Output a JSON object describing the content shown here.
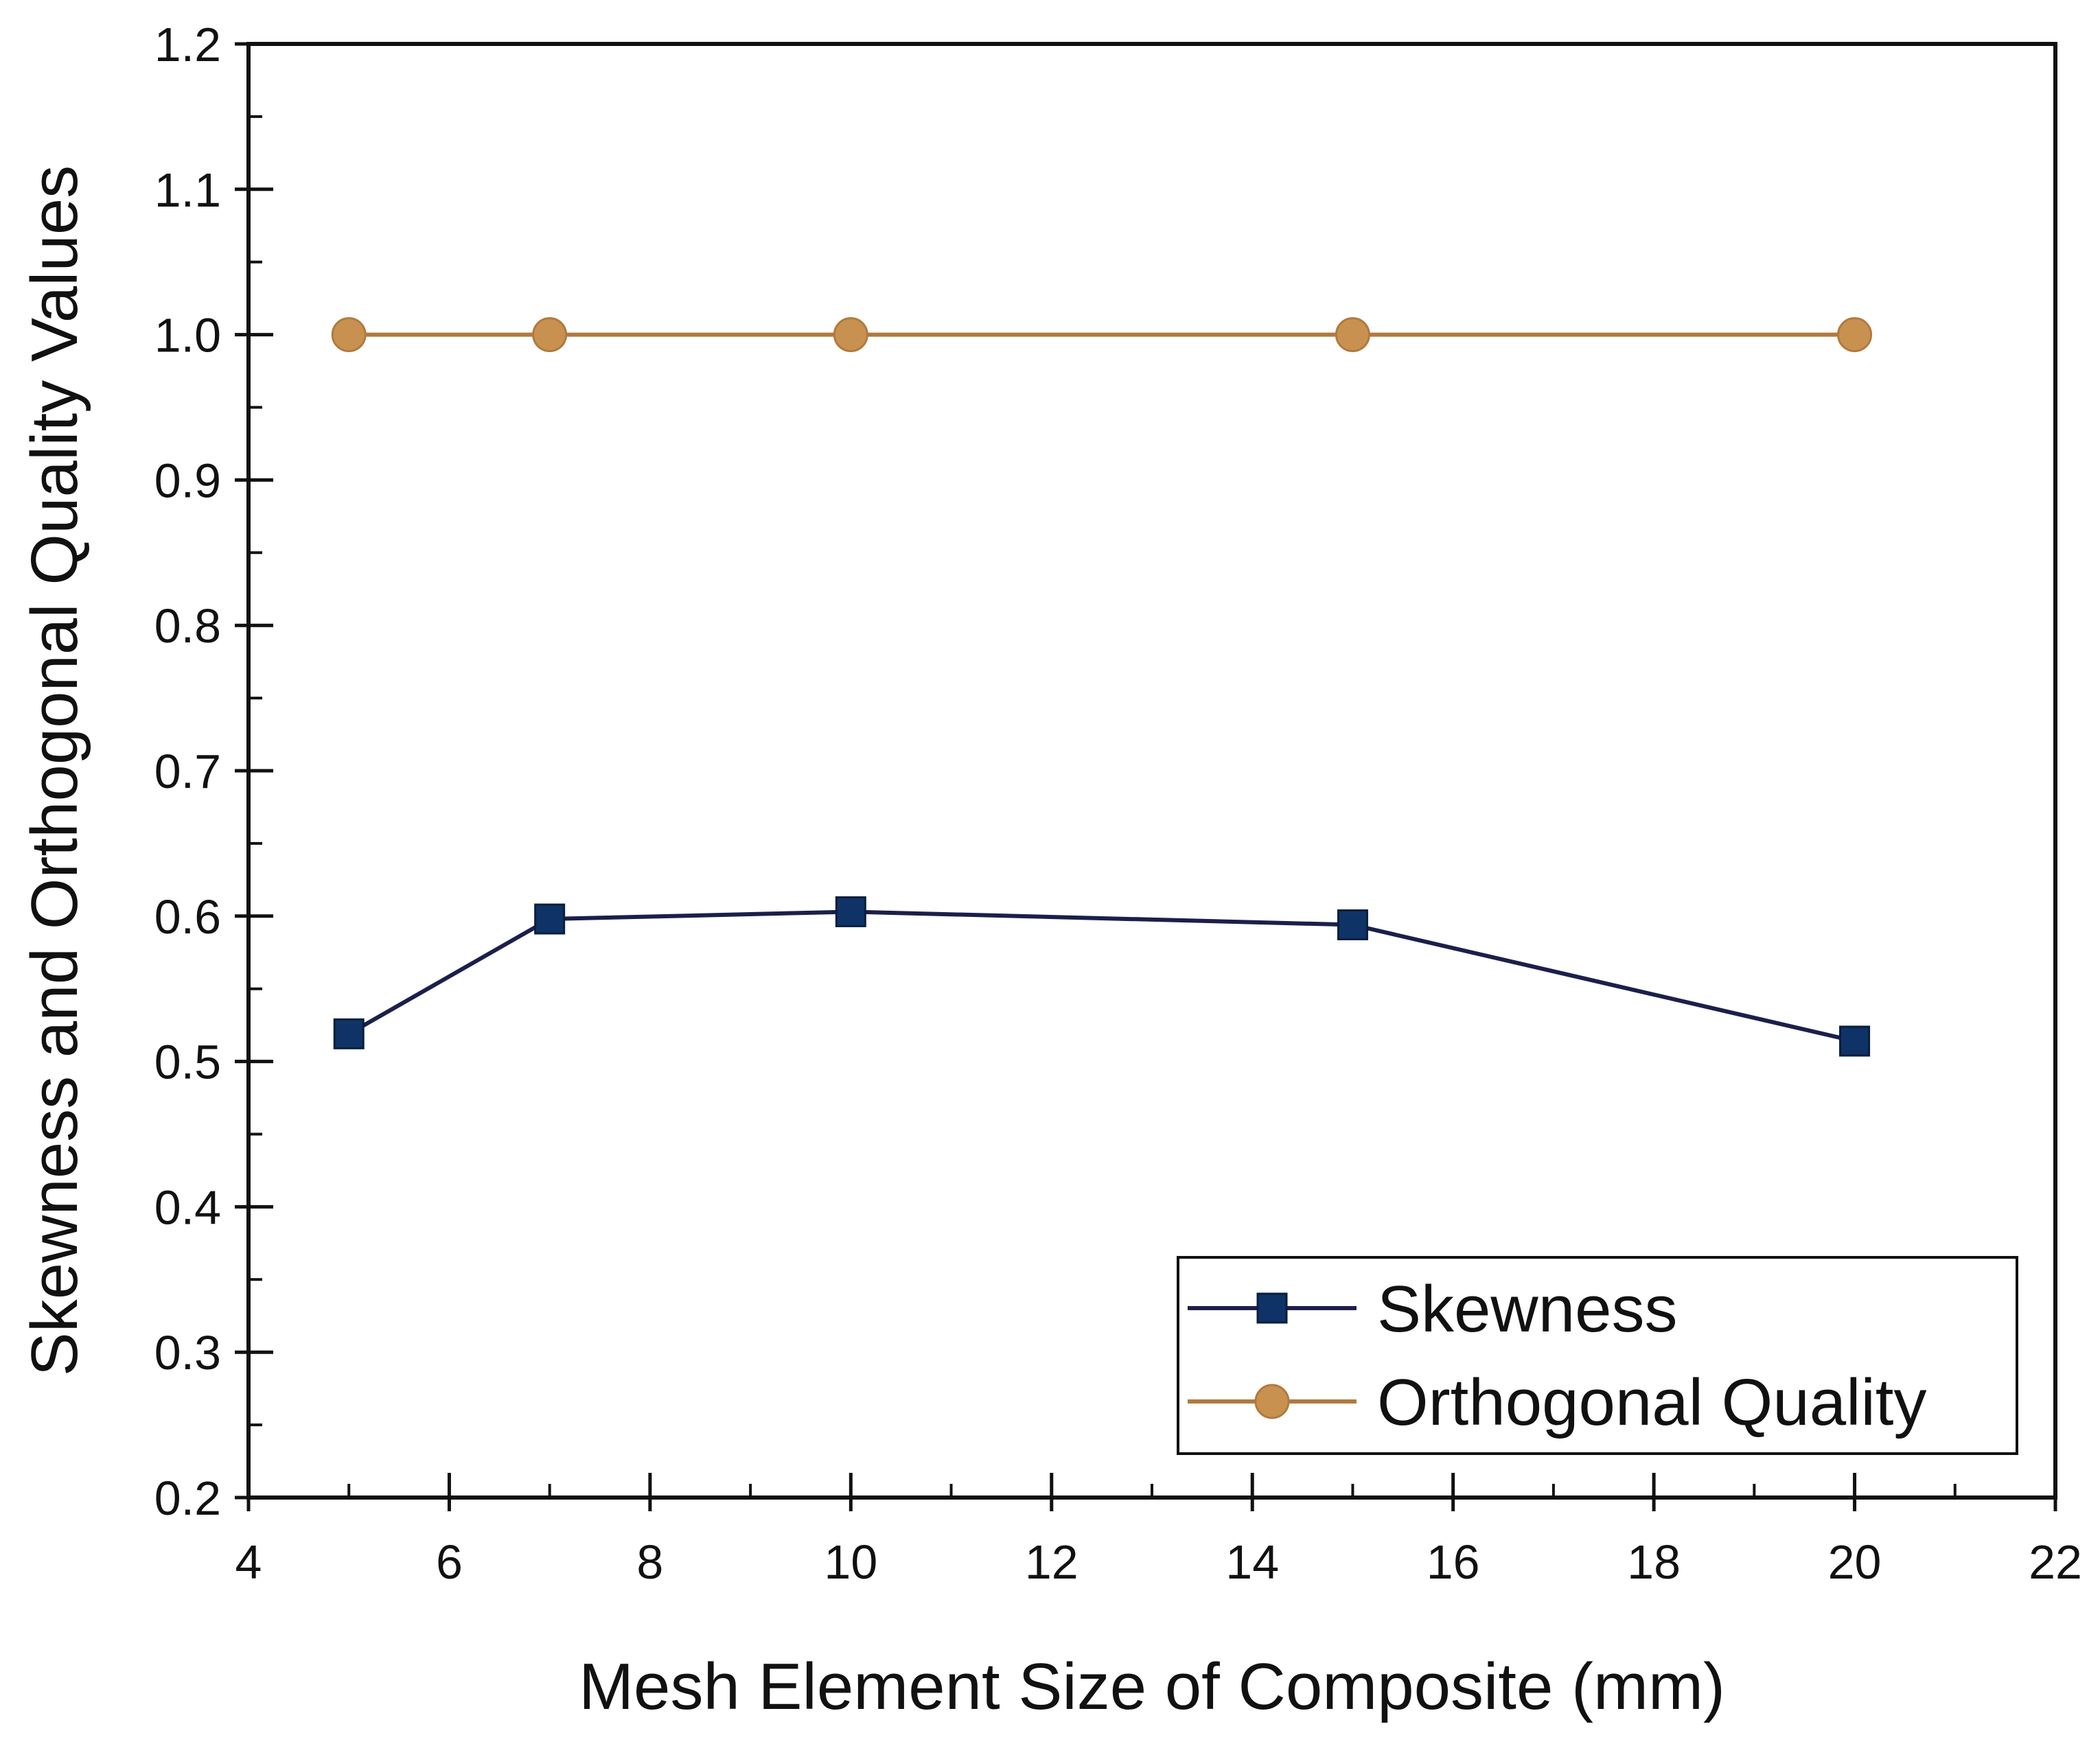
{
  "chart_data": {
    "type": "line",
    "title": "",
    "xlabel": "Mesh Element Size of Composite (mm)",
    "ylabel": "Skewness and Orthogonal Quality Values",
    "xlim": [
      4,
      22
    ],
    "ylim": [
      0.2,
      1.2
    ],
    "xticks": [
      4,
      6,
      8,
      10,
      12,
      14,
      16,
      18,
      20,
      22
    ],
    "xtick_labels": [
      "4",
      "6",
      "8",
      "10",
      "12",
      "14",
      "16",
      "18",
      "20",
      "22"
    ],
    "yticks": [
      0.2,
      0.3,
      0.4,
      0.5,
      0.6,
      0.7,
      0.8,
      0.9,
      1.0,
      1.1,
      1.2
    ],
    "ytick_labels": [
      "0.2",
      "0.3",
      "0.4",
      "0.5",
      "0.6",
      "0.7",
      "0.8",
      "0.9",
      "1.0",
      "1.1",
      "1.2"
    ],
    "grid": false,
    "legend_position": "bottom-right",
    "x": [
      5,
      7,
      10,
      15,
      20
    ],
    "series": [
      {
        "name": "Skewness",
        "values": [
          0.519,
          0.598,
          0.603,
          0.594,
          0.514
        ],
        "marker": "square",
        "color": "#1b1f4a",
        "marker_color": "#0f3366"
      },
      {
        "name": "Orthogonal Quality",
        "values": [
          1.0,
          1.0,
          1.0,
          1.0,
          1.0
        ],
        "marker": "circle",
        "color": "#b07a3e",
        "marker_color": "#c8914f"
      }
    ]
  }
}
